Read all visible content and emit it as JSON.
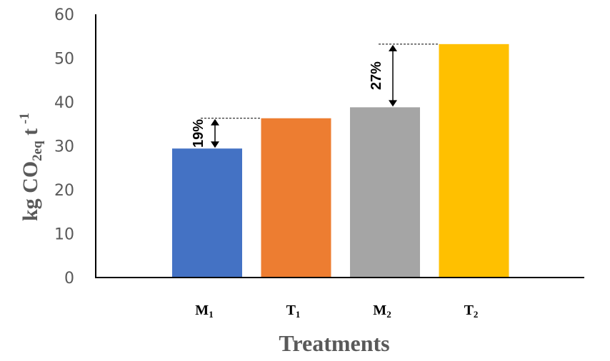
{
  "chart_data": {
    "type": "bar",
    "title": "",
    "categories": [
      {
        "base": "M",
        "sub": "1"
      },
      {
        "base": "T",
        "sub": "1"
      },
      {
        "base": "M",
        "sub": "2"
      },
      {
        "base": "T",
        "sub": "2"
      }
    ],
    "values": [
      29.4,
      36.3,
      38.8,
      53.2
    ],
    "colors": [
      "#4472C4",
      "#ED7D31",
      "#A5A5A5",
      "#FFC000"
    ],
    "xlabel": "Treatments",
    "ylabel": {
      "prefix": "kg CO",
      "sub": "2eq",
      "suffix": " t",
      "sup": "-1"
    },
    "ylim": [
      0,
      60
    ],
    "yticks": [
      0,
      10,
      20,
      30,
      40,
      50,
      60
    ],
    "grid": false,
    "legend": "none",
    "annotations": [
      {
        "label": "19%",
        "from_category": 0,
        "to_category": 1
      },
      {
        "label": "27%",
        "from_category": 2,
        "to_category": 3
      }
    ]
  }
}
